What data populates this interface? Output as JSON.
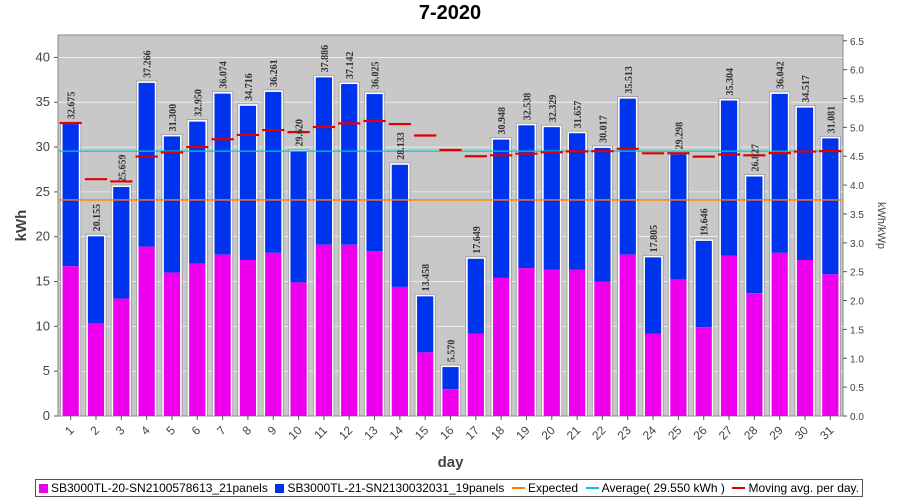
{
  "chart_data": {
    "type": "bar",
    "title": "7-2020",
    "xlabel": "day",
    "ylabel": "kWh",
    "ylabel_right": "kWh/kWp",
    "ylim": [
      0,
      42.5
    ],
    "ylim_right": [
      0,
      6.6
    ],
    "yticks": [
      "0",
      "5",
      "10",
      "15",
      "20",
      "25",
      "30",
      "35",
      "40"
    ],
    "yticks_right": [
      "0.0",
      "0.5",
      "1.0",
      "1.5",
      "2.0",
      "2.5",
      "3.0",
      "3.5",
      "4.0",
      "4.5",
      "5.0",
      "5.5",
      "6.0",
      "6.5"
    ],
    "categories": [
      "1",
      "2",
      "3",
      "4",
      "5",
      "6",
      "7",
      "8",
      "9",
      "10",
      "11",
      "12",
      "13",
      "14",
      "15",
      "16",
      "17",
      "18",
      "19",
      "20",
      "21",
      "22",
      "23",
      "24",
      "25",
      "26",
      "27",
      "28",
      "29",
      "30",
      "31"
    ],
    "series": [
      {
        "name": "SB3000TL-20-SN2100578613_21panels",
        "color": "#ee00ee",
        "values": [
          16.7,
          10.3,
          13.1,
          18.9,
          16.0,
          17.0,
          18.0,
          17.4,
          18.2,
          14.9,
          19.1,
          19.1,
          18.4,
          14.4,
          7.1,
          3.0,
          9.2,
          15.4,
          16.5,
          16.3,
          16.3,
          15.0,
          18.0,
          9.2,
          15.2,
          9.9,
          17.9,
          13.7,
          18.2,
          17.4,
          15.8
        ]
      },
      {
        "name": "SB3000TL-21-SN2130032031_19panels",
        "color": "#0033ee",
        "values": [
          15.975,
          9.855,
          12.559,
          18.366,
          15.3,
          15.95,
          18.074,
          17.316,
          18.061,
          14.72,
          18.786,
          18.042,
          17.625,
          13.733,
          6.358,
          2.57,
          8.449,
          15.548,
          16.038,
          16.029,
          15.357,
          15.017,
          17.513,
          8.605,
          14.098,
          9.746,
          17.404,
          13.127,
          17.842,
          17.117,
          15.281
        ]
      }
    ],
    "totals": [
      "32.675",
      "20.155",
      "25.659",
      "37.266",
      "31.300",
      "32.950",
      "36.074",
      "34.716",
      "36.261",
      "29.620",
      "37.886",
      "37.142",
      "36.025",
      "28.133",
      "13.458",
      "5.570",
      "17.649",
      "30.948",
      "32.538",
      "32.329",
      "31.657",
      "30.017",
      "35.513",
      "17.805",
      "29.298",
      "19.646",
      "35.304",
      "26.827",
      "36.042",
      "34.517",
      "31.081"
    ],
    "expected": {
      "name": "Expected",
      "color": "#ff8000",
      "value": 24.1
    },
    "average": {
      "name": "Average( 29.550 kWh )",
      "color": "#00cccc",
      "value": 29.55
    },
    "moving_avg": {
      "name": "Moving avg. per day.",
      "color": "#e00000",
      "values": [
        32.675,
        26.415,
        26.163,
        28.939,
        29.411,
        30.001,
        30.869,
        31.35,
        31.896,
        31.669,
        32.234,
        32.643,
        32.904,
        32.563,
        31.289,
        29.681,
        28.973,
        29.082,
        29.259,
        29.412,
        29.519,
        29.541,
        29.802,
        29.303,
        29.302,
        28.932,
        29.169,
        29.082,
        29.323,
        29.496,
        29.55
      ]
    }
  }
}
